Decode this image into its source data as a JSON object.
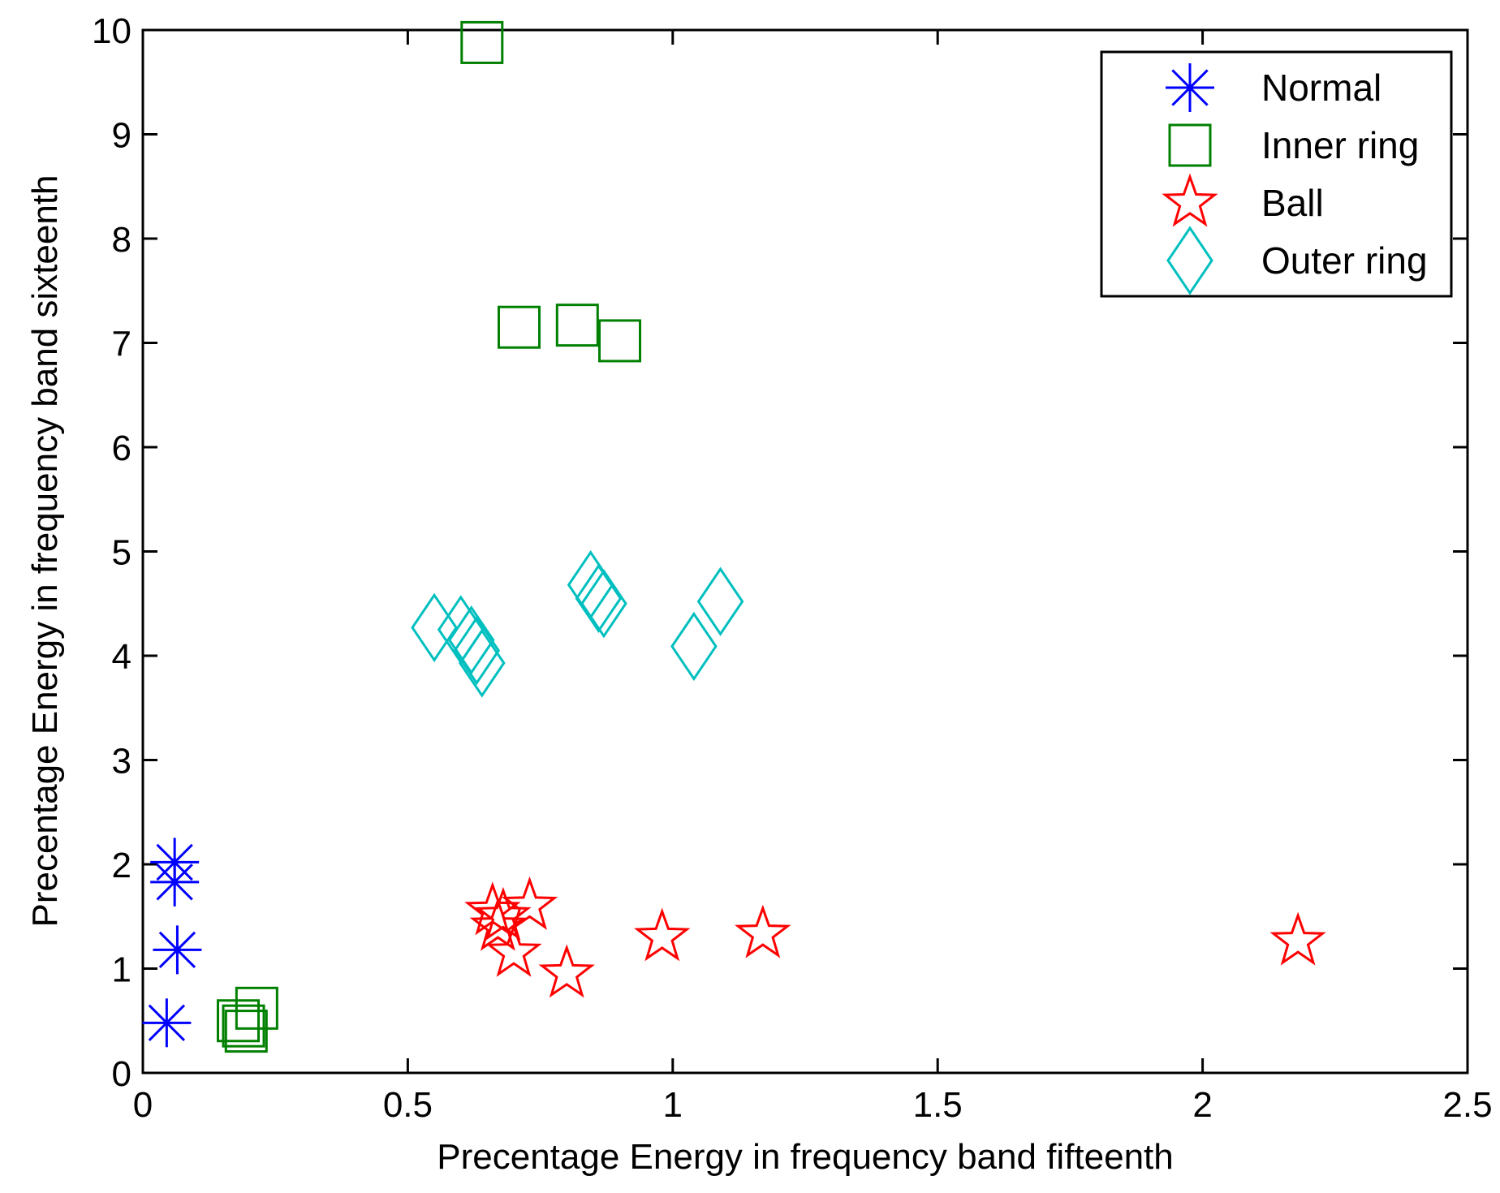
{
  "chart_data": {
    "type": "scatter",
    "title": "",
    "xlabel": "Precentage Energy in frequency band fifteenth",
    "ylabel": "Precentage Energy in frequency band sixteenth",
    "xlim": [
      0,
      2.5
    ],
    "ylim": [
      0,
      10
    ],
    "xticks": [
      0,
      0.5,
      1,
      1.5,
      2,
      2.5
    ],
    "xtick_labels": [
      "0",
      "0.5",
      "1",
      "1.5",
      "2",
      "2.5"
    ],
    "yticks": [
      0,
      1,
      2,
      3,
      4,
      5,
      6,
      7,
      8,
      9,
      10
    ],
    "ytick_labels": [
      "0",
      "1",
      "2",
      "3",
      "4",
      "5",
      "6",
      "7",
      "8",
      "9",
      "10"
    ],
    "grid": false,
    "legend_position": "top-right",
    "series": [
      {
        "name": "Normal",
        "marker": "asterisk",
        "color": "#0000ff",
        "points": [
          [
            0.06,
            2.02
          ],
          [
            0.06,
            1.83
          ],
          [
            0.065,
            1.18
          ],
          [
            0.045,
            0.48
          ]
        ]
      },
      {
        "name": "Inner ring",
        "marker": "square",
        "color": "#008000",
        "points": [
          [
            0.64,
            9.88
          ],
          [
            0.71,
            7.15
          ],
          [
            0.82,
            7.17
          ],
          [
            0.9,
            7.02
          ],
          [
            0.215,
            0.62
          ],
          [
            0.19,
            0.45
          ],
          [
            0.18,
            0.5
          ],
          [
            0.195,
            0.4
          ]
        ]
      },
      {
        "name": "Ball",
        "marker": "star",
        "color": "#ff0000",
        "points": [
          [
            0.73,
            1.6
          ],
          [
            0.66,
            1.55
          ],
          [
            0.68,
            1.5
          ],
          [
            0.67,
            1.4
          ],
          [
            0.7,
            1.15
          ],
          [
            0.8,
            0.95
          ],
          [
            0.98,
            1.3
          ],
          [
            1.17,
            1.33
          ],
          [
            2.18,
            1.26
          ]
        ]
      },
      {
        "name": "Outer ring",
        "marker": "diamond",
        "color": "#00bfbf",
        "points": [
          [
            0.55,
            4.27
          ],
          [
            0.6,
            4.25
          ],
          [
            0.62,
            4.15
          ],
          [
            0.63,
            4.05
          ],
          [
            0.64,
            3.93
          ],
          [
            0.845,
            4.68
          ],
          [
            0.86,
            4.55
          ],
          [
            0.87,
            4.5
          ],
          [
            1.09,
            4.52
          ],
          [
            1.04,
            4.09
          ]
        ]
      }
    ]
  }
}
